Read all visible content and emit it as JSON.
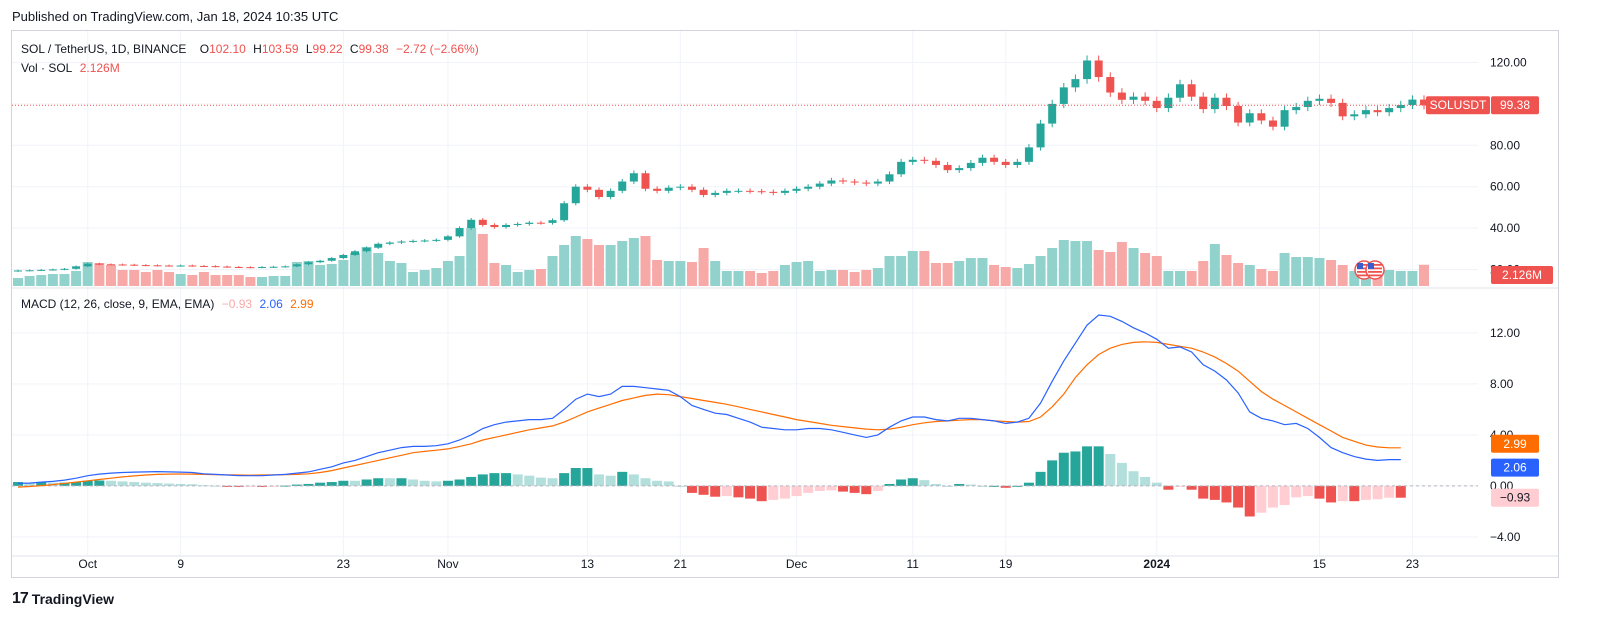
{
  "published": "Published on TradingView.com, Jan 18, 2024 10:35 UTC",
  "footer_brand": "TradingView",
  "legend": {
    "symbol": "SOL / TetherUS, 1D, BINANCE",
    "o_label": "O",
    "o_value": "102.10",
    "h_label": "H",
    "h_value": "103.59",
    "l_label": "L",
    "l_value": "99.22",
    "c_label": "C",
    "c_value": "99.38",
    "change": "−2.72 (−2.66%)",
    "vol_label": "Vol · SOL",
    "vol_value": "2.126M",
    "macd_label": "MACD (12, 26, close, 9, EMA, EMA)",
    "macd_hist": "−0.93",
    "macd_line": "2.06",
    "macd_signal": "2.99"
  },
  "colors": {
    "up": "#26a69a",
    "down": "#ef5350",
    "macd": "#2962ff",
    "signal": "#ff6d00",
    "vol_up": "#92d2cc",
    "vol_down": "#f7a9a7",
    "hist_up_light": "#b2dfdb",
    "hist_down_light": "#ffcdd2"
  },
  "chart_data": {
    "type": "candlestick",
    "price_axis": {
      "range": [
        12,
        128
      ],
      "ticks": [
        "120.00",
        "100.00",
        "80.00",
        "60.00",
        "40.00",
        "20.00"
      ]
    },
    "macd_axis": {
      "range": [
        -5.5,
        14.5
      ],
      "ticks": [
        "12.00",
        "8.00",
        "4.00",
        "0.00",
        "−4.00"
      ]
    },
    "x_ticks": [
      {
        "label": "Oct",
        "i": 6
      },
      {
        "label": "9",
        "i": 14
      },
      {
        "label": "23",
        "i": 28
      },
      {
        "label": "Nov",
        "i": 37
      },
      {
        "label": "13",
        "i": 49
      },
      {
        "label": "21",
        "i": 57
      },
      {
        "label": "Dec",
        "i": 67
      },
      {
        "label": "11",
        "i": 77
      },
      {
        "label": "19",
        "i": 85
      },
      {
        "label": "2024",
        "i": 98
      },
      {
        "label": "15",
        "i": 112
      },
      {
        "label": "23",
        "i": 120
      }
    ],
    "price_label": {
      "symbol": "SOLUSDT",
      "value": "99.38"
    },
    "vol_label": "2.126M",
    "macd_labels": {
      "signal": "2.99",
      "macd": "2.06",
      "hist": "−0.93"
    },
    "close": [
      19.5,
      19.6,
      19.8,
      20.0,
      20.3,
      21.5,
      22.8,
      22.5,
      22.4,
      22.3,
      22.1,
      22.0,
      21.9,
      21.8,
      21.9,
      21.7,
      21.6,
      21.4,
      21.2,
      21.1,
      21.0,
      21.2,
      21.3,
      21.5,
      22.5,
      23.5,
      24.2,
      25.5,
      27.0,
      28.8,
      30.5,
      32.4,
      33.0,
      33.5,
      33.8,
      34.0,
      34.3,
      36.0,
      40.0,
      44.0,
      41.5,
      40.5,
      41.5,
      42.0,
      42.6,
      42.5,
      43.8,
      52.0,
      60.0,
      58.5,
      55.0,
      58.0,
      62.5,
      66.5,
      59.0,
      58.0,
      59.5,
      60.0,
      58.5,
      56.0,
      57.0,
      58.0,
      58.0,
      57.8,
      57.5,
      57.0,
      58.0,
      59.0,
      60.0,
      61.5,
      63.0,
      62.5,
      62.0,
      61.5,
      62.5,
      66.0,
      72.0,
      73.0,
      72.5,
      70.5,
      68.0,
      69.0,
      71.5,
      74.0,
      72.0,
      70.5,
      72.0,
      79.0,
      90.5,
      100.0,
      108.0,
      112.0,
      121.0,
      113.0,
      105.5,
      102.0,
      103.5,
      101.5,
      98.0,
      103.0,
      109.5,
      103.5,
      97.5,
      103.0,
      99.0,
      91.0,
      95.5,
      92.0,
      89.0,
      97.0,
      98.5,
      101.5,
      102.5,
      100.5,
      94.0,
      95.0,
      97.0,
      96.0,
      98.0,
      99.5,
      102.1,
      99.38
    ],
    "volume": [
      0.8,
      1.0,
      1.1,
      1.2,
      1.2,
      1.5,
      2.4,
      2.3,
      2.1,
      1.6,
      1.6,
      1.4,
      1.6,
      1.4,
      1.2,
      1.1,
      1.4,
      1.1,
      1.1,
      1.1,
      0.9,
      0.9,
      1.0,
      1.0,
      2.4,
      2.5,
      2.1,
      2.2,
      2.6,
      3.3,
      3.9,
      3.3,
      2.5,
      2.3,
      1.4,
      1.6,
      1.8,
      2.5,
      3.0,
      5.8,
      5.2,
      2.3,
      2.1,
      1.4,
      1.6,
      1.7,
      3.0,
      4.1,
      5.0,
      4.7,
      4.1,
      4.1,
      4.5,
      4.8,
      5.0,
      2.6,
      2.5,
      2.5,
      2.4,
      3.8,
      2.5,
      1.5,
      1.5,
      1.5,
      1.3,
      1.5,
      2.1,
      2.4,
      2.5,
      1.5,
      1.6,
      1.6,
      1.4,
      1.6,
      1.8,
      3.0,
      3.0,
      3.5,
      3.5,
      2.3,
      2.3,
      2.5,
      2.8,
      2.8,
      2.1,
      1.9,
      1.8,
      2.2,
      3.0,
      3.8,
      4.6,
      4.5,
      4.5,
      3.6,
      3.4,
      4.4,
      3.8,
      3.3,
      3.0,
      1.5,
      1.5,
      1.5,
      2.5,
      4.2,
      3.1,
      2.3,
      2.1,
      1.7,
      1.5,
      3.3,
      2.9,
      2.9,
      2.8,
      2.6,
      2.1,
      1.5,
      2.0,
      1.4,
      1.6,
      1.5,
      1.5,
      2.126
    ],
    "macd": [
      0.2,
      0.22,
      0.3,
      0.35,
      0.45,
      0.6,
      0.8,
      0.92,
      1.0,
      1.05,
      1.08,
      1.1,
      1.12,
      1.1,
      1.08,
      1.05,
      0.95,
      0.9,
      0.85,
      0.8,
      0.8,
      0.8,
      0.85,
      0.9,
      1.0,
      1.1,
      1.3,
      1.5,
      1.8,
      2.0,
      2.3,
      2.6,
      2.8,
      3.0,
      3.1,
      3.1,
      3.15,
      3.3,
      3.6,
      4.0,
      4.5,
      4.8,
      5.0,
      5.1,
      5.2,
      5.2,
      5.3,
      6.0,
      6.8,
      7.2,
      7.0,
      7.2,
      7.8,
      7.8,
      7.7,
      7.6,
      7.5,
      7.0,
      6.3,
      6.0,
      5.7,
      5.6,
      5.3,
      5.0,
      4.6,
      4.5,
      4.4,
      4.4,
      4.5,
      4.5,
      4.4,
      4.2,
      4.0,
      3.8,
      4.0,
      4.6,
      5.1,
      5.4,
      5.4,
      5.2,
      5.1,
      5.3,
      5.3,
      5.2,
      5.1,
      4.9,
      5.0,
      5.3,
      6.5,
      8.2,
      9.8,
      11.2,
      12.6,
      13.4,
      13.3,
      12.9,
      12.4,
      12.0,
      11.5,
      10.8,
      10.9,
      10.5,
      9.5,
      9.0,
      8.3,
      7.3,
      5.8,
      5.3,
      5.1,
      4.8,
      4.9,
      4.5,
      3.8,
      3.0,
      2.6,
      2.3,
      2.1,
      2.0,
      2.06,
      2.06
    ],
    "signal": [
      -0.1,
      -0.05,
      0.02,
      0.1,
      0.2,
      0.3,
      0.4,
      0.5,
      0.6,
      0.7,
      0.78,
      0.85,
      0.9,
      0.92,
      0.93,
      0.92,
      0.9,
      0.88,
      0.86,
      0.85,
      0.84,
      0.85,
      0.86,
      0.88,
      0.9,
      0.95,
      1.05,
      1.2,
      1.4,
      1.6,
      1.8,
      2.0,
      2.2,
      2.4,
      2.6,
      2.7,
      2.8,
      2.9,
      3.1,
      3.3,
      3.6,
      3.8,
      4.0,
      4.2,
      4.4,
      4.55,
      4.7,
      5.0,
      5.4,
      5.8,
      6.1,
      6.4,
      6.7,
      6.9,
      7.1,
      7.2,
      7.15,
      7.0,
      6.85,
      6.7,
      6.55,
      6.4,
      6.2,
      6.0,
      5.8,
      5.6,
      5.4,
      5.2,
      5.05,
      4.9,
      4.75,
      4.65,
      4.55,
      4.45,
      4.4,
      4.45,
      4.6,
      4.8,
      4.95,
      5.05,
      5.1,
      5.15,
      5.2,
      5.2,
      5.1,
      5.05,
      5.0,
      5.05,
      5.4,
      6.2,
      7.2,
      8.5,
      9.5,
      10.3,
      10.8,
      11.1,
      11.25,
      11.3,
      11.25,
      11.1,
      10.95,
      10.8,
      10.5,
      10.1,
      9.6,
      9.0,
      8.2,
      7.4,
      6.8,
      6.3,
      5.8,
      5.3,
      4.8,
      4.3,
      3.8,
      3.5,
      3.2,
      3.05,
      2.99,
      2.99
    ]
  }
}
